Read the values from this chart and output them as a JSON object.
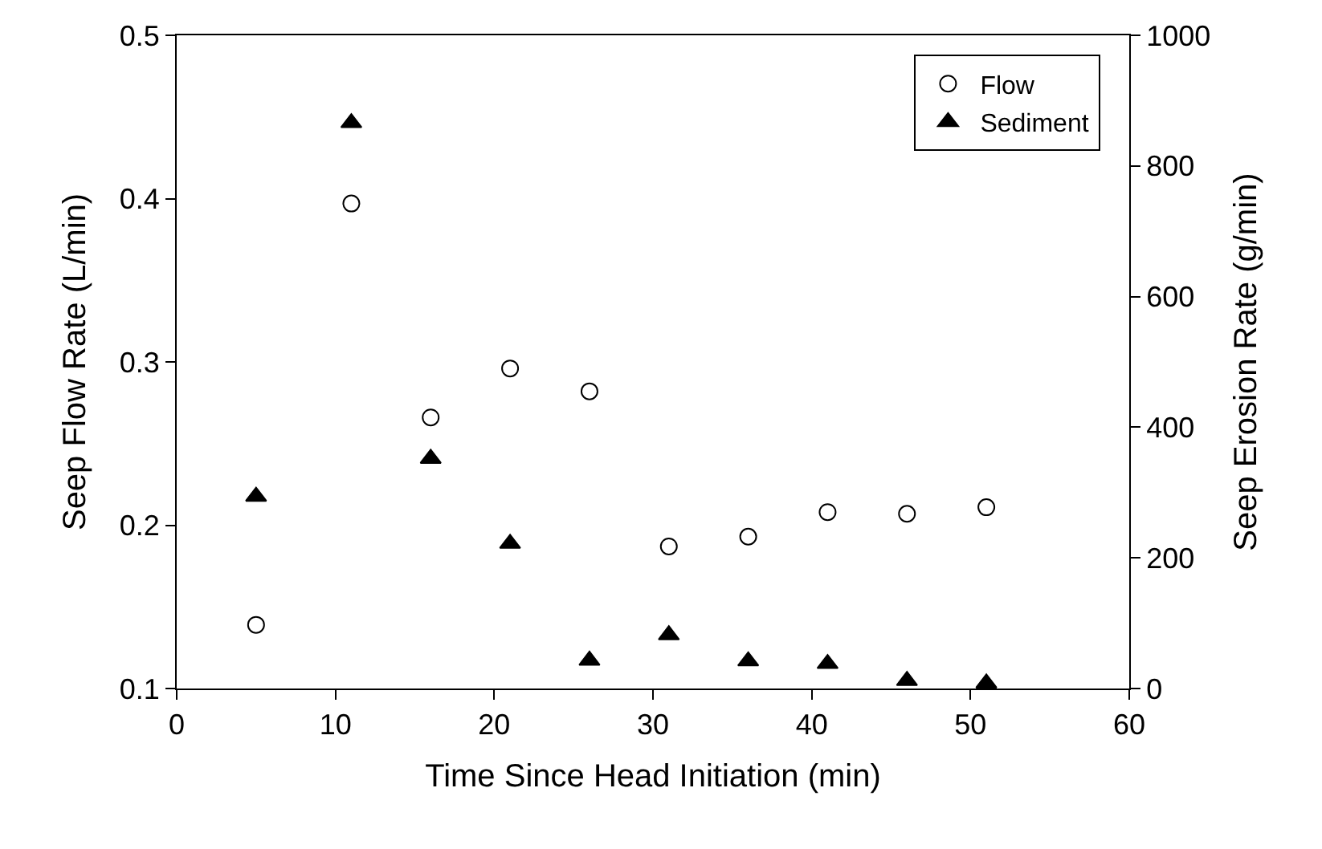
{
  "chart_data": {
    "type": "scatter",
    "xlabel": "Time Since Head Initiation (min)",
    "ylabel": "Seep Flow Rate (L/min)",
    "y2label": "Seep Erosion Rate (g/min)",
    "x": [
      5,
      11,
      16,
      21,
      26,
      31,
      36,
      41,
      46,
      51
    ],
    "series": [
      {
        "name": "Flow",
        "color": "#000000",
        "marker": "circle",
        "values": [
          0.139,
          0.397,
          0.266,
          0.296,
          0.282,
          0.187,
          0.193,
          0.208,
          0.207,
          0.211
        ]
      },
      {
        "name": "Sediment",
        "color": "#000000",
        "marker": "triangle",
        "axis": "y2",
        "values": [
          294,
          866,
          352,
          222,
          43,
          82,
          42,
          38,
          12,
          8
        ]
      }
    ],
    "xlim": [
      0,
      60
    ],
    "xticks": [
      0,
      10,
      20,
      30,
      40,
      50,
      60
    ],
    "ylim": [
      0.1,
      0.5
    ],
    "yticks": [
      0.1,
      0.2,
      0.3,
      0.4,
      0.5
    ],
    "y2lim": [
      0,
      1000
    ],
    "y2ticks": [
      0,
      200,
      400,
      600,
      800,
      1000
    ],
    "legend": "top right"
  }
}
